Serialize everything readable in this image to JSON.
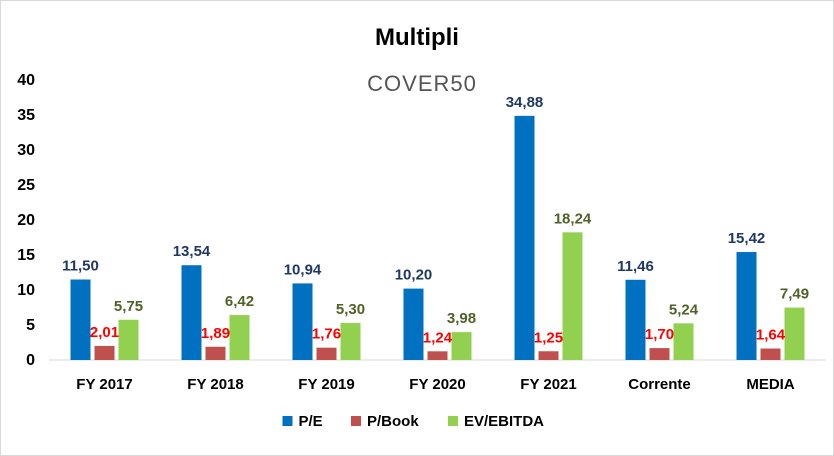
{
  "watermark": "COVER50",
  "chart_data": {
    "type": "bar",
    "title": "Multipli",
    "categories": [
      "FY 2017",
      "FY 2018",
      "FY 2019",
      "FY 2020",
      "FY 2021",
      "Corrente",
      "MEDIA"
    ],
    "series": [
      {
        "name": "P/E",
        "color": "#0070c0",
        "label_color": "#1f3864",
        "values": [
          11.5,
          13.54,
          10.94,
          10.2,
          34.88,
          11.46,
          15.42
        ],
        "labels": [
          "11,50",
          "13,54",
          "10,94",
          "10,20",
          "34,88",
          "11,46",
          "15,42"
        ]
      },
      {
        "name": "P/Book",
        "color": "#c0504d",
        "label_color": "#ff0000",
        "values": [
          2.01,
          1.89,
          1.76,
          1.24,
          1.25,
          1.7,
          1.64
        ],
        "labels": [
          "2,01",
          "1,89",
          "1,76",
          "1,24",
          "1,25",
          "1,70",
          "1,64"
        ]
      },
      {
        "name": "EV/EBITDA",
        "color": "#92d050",
        "label_color": "#4f6228",
        "values": [
          5.75,
          6.42,
          5.3,
          3.98,
          18.24,
          5.24,
          7.49
        ],
        "labels": [
          "5,75",
          "6,42",
          "5,30",
          "3,98",
          "18,24",
          "5,24",
          "7,49"
        ]
      }
    ],
    "yticks": [
      0,
      5,
      10,
      15,
      20,
      25,
      30,
      35,
      40
    ],
    "ylim": [
      0,
      40
    ],
    "grid": false,
    "legend": "bottom"
  }
}
